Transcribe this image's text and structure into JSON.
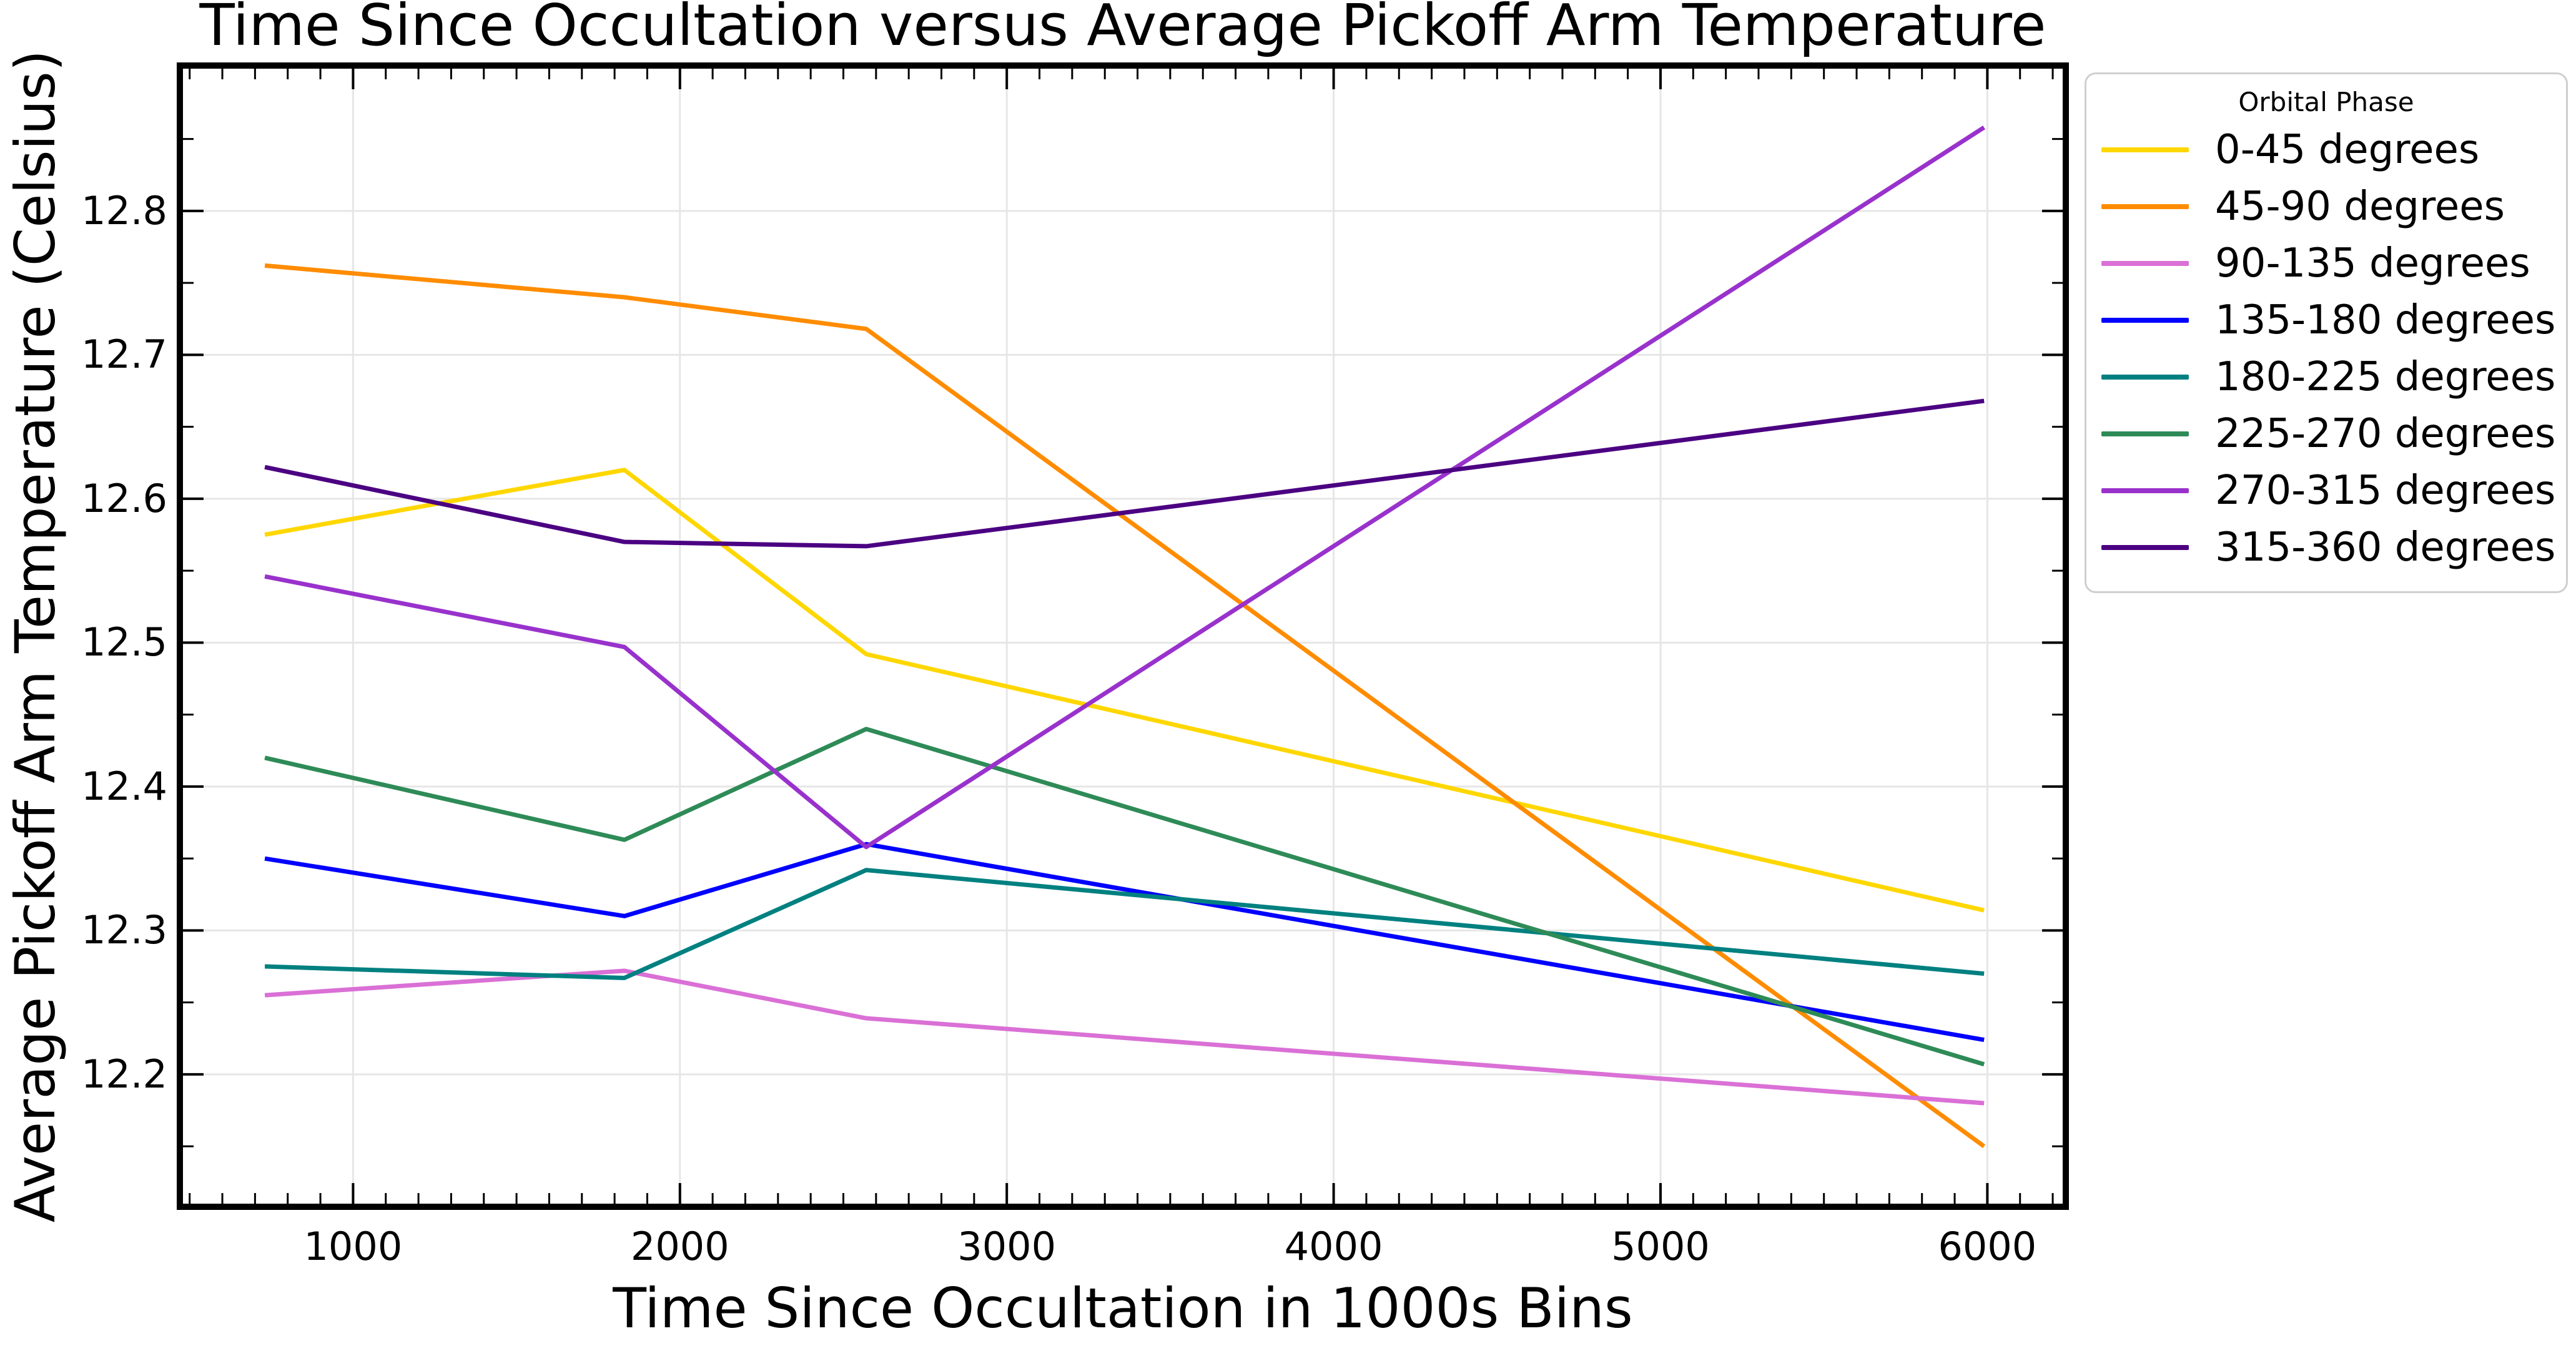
{
  "title": "Time Since Occultation versus Average Pickoff Arm Temperature",
  "x_axis": {
    "label": "Time Since Occultation in 1000s Bins",
    "tick_labels": [
      "1000",
      "2000",
      "3000",
      "4000",
      "5000",
      "6000"
    ]
  },
  "y_axis": {
    "label": "Average Pickoff Arm Temperature (Celsius)",
    "tick_labels": [
      "12.2",
      "12.3",
      "12.4",
      "12.5",
      "12.6",
      "12.7",
      "12.8"
    ]
  },
  "legend": {
    "title": "Orbital Phase"
  },
  "colors": {
    "grid": "#e6e6e6",
    "spine": "#000000",
    "legend_border": "#cfcfcf",
    "background": "#ffffff"
  },
  "chart_data": {
    "type": "line",
    "title": "Time Since Occultation versus Average Pickoff Arm Temperature",
    "xlabel": "Time Since Occultation in 1000s Bins",
    "ylabel": "Average Pickoff Arm Temperature (Celsius)",
    "legend_title": "Orbital Phase",
    "legend_position": "outside-right",
    "grid": true,
    "x": [
      730,
      1830,
      2570,
      5990
    ],
    "series": [
      {
        "name": "0-45 degrees",
        "color": "#FFD700",
        "values": [
          12.575,
          12.62,
          12.492,
          12.314
        ]
      },
      {
        "name": "45-90 degrees",
        "color": "#FF8C00",
        "values": [
          12.762,
          12.74,
          12.718,
          12.15
        ]
      },
      {
        "name": "90-135 degrees",
        "color": "#DA70D6",
        "values": [
          12.255,
          12.272,
          12.239,
          12.18
        ]
      },
      {
        "name": "135-180 degrees",
        "color": "#0000FF",
        "values": [
          12.35,
          12.31,
          12.36,
          12.224
        ]
      },
      {
        "name": "180-225 degrees",
        "color": "#008080",
        "values": [
          12.275,
          12.267,
          12.342,
          12.27
        ]
      },
      {
        "name": "225-270 degrees",
        "color": "#2E8B57",
        "values": [
          12.42,
          12.363,
          12.44,
          12.207
        ]
      },
      {
        "name": "270-315 degrees",
        "color": "#9932CC",
        "values": [
          12.546,
          12.497,
          12.358,
          12.858
        ]
      },
      {
        "name": "315-360 degrees",
        "color": "#4B0082",
        "values": [
          12.622,
          12.57,
          12.567,
          12.668
        ]
      }
    ],
    "xlim": [
      470,
      6240
    ],
    "ylim": [
      12.108,
      12.901
    ],
    "x_ticks": [
      1000,
      2000,
      3000,
      4000,
      5000,
      6000
    ],
    "y_ticks": [
      12.2,
      12.3,
      12.4,
      12.5,
      12.6,
      12.7,
      12.8
    ],
    "x_minor_step": 100,
    "y_minor_step": 0.05
  }
}
